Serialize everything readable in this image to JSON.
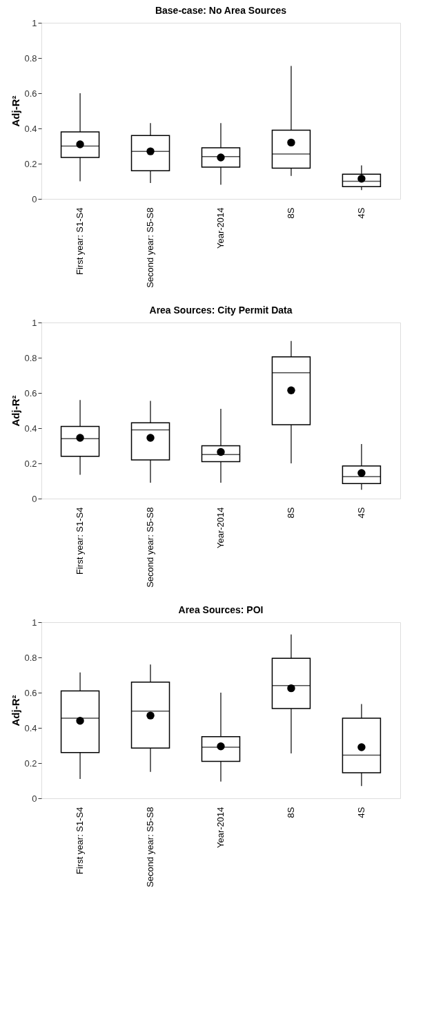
{
  "chart_data": [
    {
      "type": "box",
      "title": "Base-case: No Area Sources",
      "ylabel": "Adj-R²",
      "categories": [
        "First year: S1-S4",
        "Second year: S5-S8",
        "Year-2014",
        "8S",
        "4S"
      ],
      "ylim": [
        0,
        1
      ],
      "yticks": [
        0,
        0.2,
        0.4,
        0.6,
        0.8,
        1
      ],
      "grid": false,
      "boxes": [
        {
          "low": 0.1,
          "q1": 0.235,
          "median": 0.3,
          "q3": 0.38,
          "high": 0.6,
          "mean": 0.31
        },
        {
          "low": 0.09,
          "q1": 0.16,
          "median": 0.27,
          "q3": 0.36,
          "high": 0.43,
          "mean": 0.27
        },
        {
          "low": 0.08,
          "q1": 0.18,
          "median": 0.24,
          "q3": 0.29,
          "high": 0.43,
          "mean": 0.235
        },
        {
          "low": 0.13,
          "q1": 0.175,
          "median": 0.255,
          "q3": 0.39,
          "high": 0.755,
          "mean": 0.32
        },
        {
          "low": 0.05,
          "q1": 0.07,
          "median": 0.1,
          "q3": 0.14,
          "high": 0.19,
          "mean": 0.115
        }
      ]
    },
    {
      "type": "box",
      "title": "Area Sources: City Permit Data",
      "ylabel": "Adj-R²",
      "categories": [
        "First year: S1-S4",
        "Second year: S5-S8",
        "Year-2014",
        "8S",
        "4S"
      ],
      "ylim": [
        0,
        1
      ],
      "yticks": [
        0,
        0.2,
        0.4,
        0.6,
        0.8,
        1
      ],
      "grid": false,
      "boxes": [
        {
          "low": 0.135,
          "q1": 0.24,
          "median": 0.34,
          "q3": 0.41,
          "high": 0.56,
          "mean": 0.345
        },
        {
          "low": 0.09,
          "q1": 0.22,
          "median": 0.39,
          "q3": 0.43,
          "high": 0.555,
          "mean": 0.345
        },
        {
          "low": 0.09,
          "q1": 0.21,
          "median": 0.25,
          "q3": 0.3,
          "high": 0.51,
          "mean": 0.265
        },
        {
          "low": 0.2,
          "q1": 0.42,
          "median": 0.715,
          "q3": 0.805,
          "high": 0.895,
          "mean": 0.615
        },
        {
          "low": 0.05,
          "q1": 0.085,
          "median": 0.125,
          "q3": 0.185,
          "high": 0.31,
          "mean": 0.145
        }
      ]
    },
    {
      "type": "box",
      "title": "Area Sources: POI",
      "ylabel": "Adj-R²",
      "categories": [
        "First year: S1-S4",
        "Second year: S5-S8",
        "Year-2014",
        "8S",
        "4S"
      ],
      "ylim": [
        0,
        1
      ],
      "yticks": [
        0,
        0.2,
        0.4,
        0.6,
        0.8,
        1
      ],
      "grid": false,
      "boxes": [
        {
          "low": 0.11,
          "q1": 0.26,
          "median": 0.455,
          "q3": 0.61,
          "high": 0.715,
          "mean": 0.44
        },
        {
          "low": 0.15,
          "q1": 0.285,
          "median": 0.495,
          "q3": 0.66,
          "high": 0.76,
          "mean": 0.47
        },
        {
          "low": 0.095,
          "q1": 0.21,
          "median": 0.29,
          "q3": 0.35,
          "high": 0.6,
          "mean": 0.295
        },
        {
          "low": 0.255,
          "q1": 0.51,
          "median": 0.64,
          "q3": 0.795,
          "high": 0.93,
          "mean": 0.625
        },
        {
          "low": 0.07,
          "q1": 0.145,
          "median": 0.245,
          "q3": 0.455,
          "high": 0.535,
          "mean": 0.29
        }
      ]
    }
  ]
}
